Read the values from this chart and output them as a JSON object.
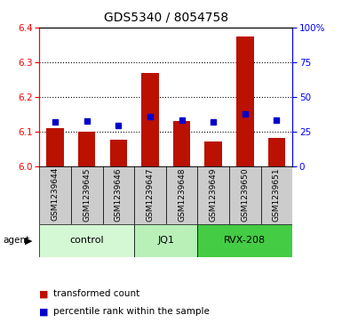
{
  "title": "GDS5340 / 8054758",
  "samples": [
    "GSM1239644",
    "GSM1239645",
    "GSM1239646",
    "GSM1239647",
    "GSM1239648",
    "GSM1239649",
    "GSM1239650",
    "GSM1239651"
  ],
  "red_values": [
    6.11,
    6.1,
    6.078,
    6.27,
    6.13,
    6.072,
    6.375,
    6.082
  ],
  "blue_values": [
    6.127,
    6.13,
    6.117,
    6.143,
    6.133,
    6.127,
    6.152,
    6.133
  ],
  "ylim_left": [
    6.0,
    6.4
  ],
  "ylim_right": [
    0,
    100
  ],
  "yticks_left": [
    6.0,
    6.1,
    6.2,
    6.3,
    6.4
  ],
  "yticks_right": [
    0,
    25,
    50,
    75,
    100
  ],
  "ytick_labels_right": [
    "0",
    "25",
    "50",
    "75",
    "100%"
  ],
  "groups": [
    {
      "label": "control",
      "indices": [
        0,
        1,
        2
      ],
      "color": "#d4f7d4"
    },
    {
      "label": "JQ1",
      "indices": [
        3,
        4
      ],
      "color": "#b8f0b8"
    },
    {
      "label": "RVX-208",
      "indices": [
        5,
        6,
        7
      ],
      "color": "#44cc44"
    }
  ],
  "agent_label": "agent",
  "bar_color": "#bb1100",
  "dot_color": "#0000cc",
  "bar_bottom": 6.0,
  "bg_color": "#ffffff",
  "label_red": "transformed count",
  "label_blue": "percentile rank within the sample",
  "sample_box_color": "#cccccc",
  "grid_yticks": [
    6.1,
    6.2,
    6.3
  ]
}
